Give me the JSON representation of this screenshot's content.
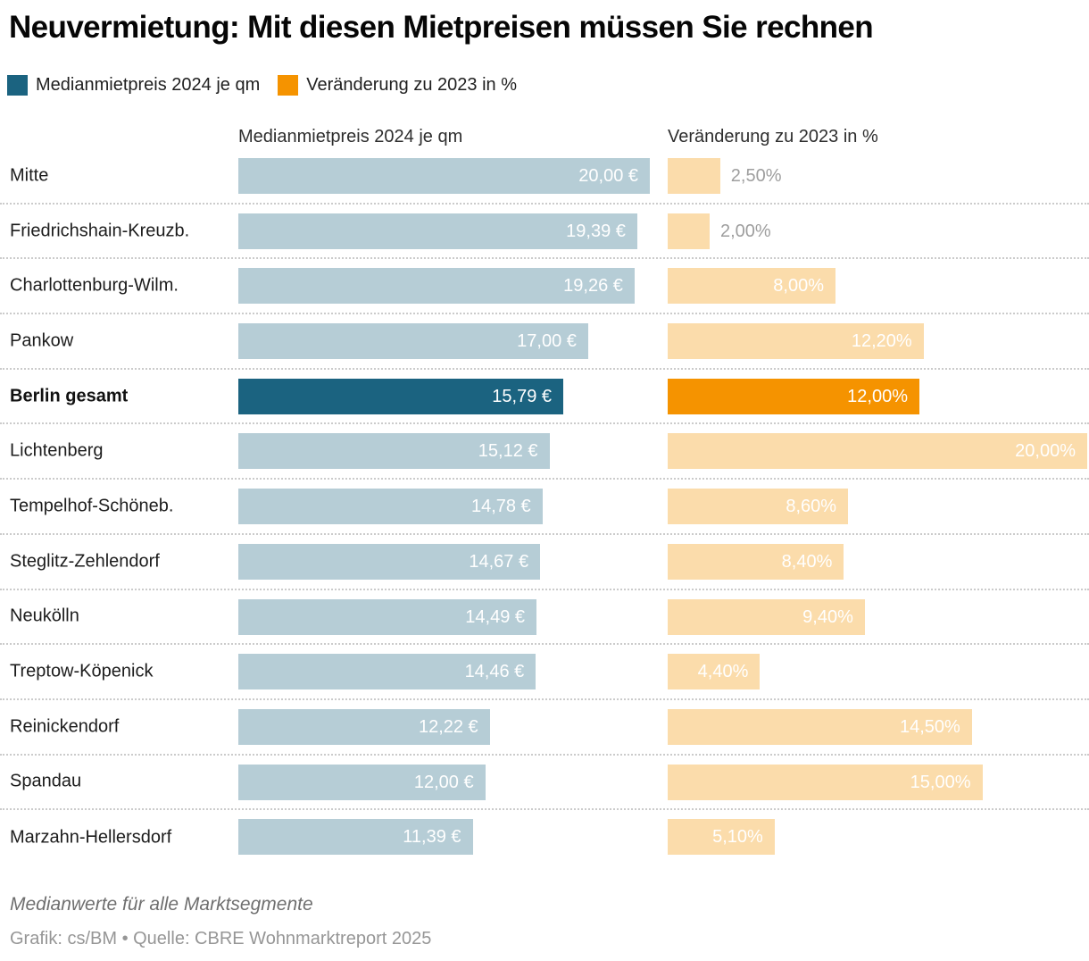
{
  "title": "Neuvermietung: Mit diesen Mietpreisen müssen Sie rechnen",
  "legend": {
    "items": [
      {
        "label": "Medianmietpreis 2024 je qm",
        "color": "#1b6380"
      },
      {
        "label": "Veränderung zu 2023 in %",
        "color": "#f59300"
      }
    ]
  },
  "columns": {
    "left": "Medianmietpreis 2024 je qm",
    "right": "Veränderung zu 2023 in %"
  },
  "footer": {
    "footnote": "Medianwerte für alle Marktsegmente",
    "source": "Grafik: cs/BM • Quelle: CBRE Wohnmarktreport 2025"
  },
  "chart_data": {
    "type": "bar",
    "orientation": "horizontal",
    "title": "Neuvermietung: Mit diesen Mietpreisen müssen Sie rechnen",
    "categories": [
      "Mitte",
      "Friedrichshain-Kreuzb.",
      "Charlottenburg-Wilm.",
      "Pankow",
      "Berlin gesamt",
      "Lichtenberg",
      "Tempelhof-Schöneb.",
      "Steglitz-Zehlendorf",
      "Neukölln",
      "Treptow-Köpenick",
      "Reinickendorf",
      "Spandau",
      "Marzahn-Hellersdorf"
    ],
    "highlight_category": "Berlin gesamt",
    "grid": "dotted-row-separators",
    "legend_position": "top-left",
    "series": [
      {
        "name": "Medianmietpreis 2024 je qm",
        "unit": "€ je qm",
        "axis_max": 20,
        "values": [
          20.0,
          19.39,
          19.26,
          17.0,
          15.79,
          15.12,
          14.78,
          14.67,
          14.49,
          14.46,
          12.22,
          12.0,
          11.39
        ],
        "labels": [
          "20,00 €",
          "19,39 €",
          "19,26 €",
          "17,00 €",
          "15,79 €",
          "15,12 €",
          "14,78 €",
          "14,67 €",
          "14,49 €",
          "14,46 €",
          "12,22 €",
          "12,00 €",
          "11,39 €"
        ]
      },
      {
        "name": "Veränderung zu 2023 in %",
        "unit": "%",
        "axis_max": 20,
        "values": [
          2.5,
          2.0,
          8.0,
          12.2,
          12.0,
          20.0,
          8.6,
          8.4,
          9.4,
          4.4,
          14.5,
          15.0,
          5.1
        ],
        "labels": [
          "2,50%",
          "2,00%",
          "8,00%",
          "12,20%",
          "12,00%",
          "20,00%",
          "8,60%",
          "8,40%",
          "9,40%",
          "4,40%",
          "14,50%",
          "15,00%",
          "5,10%"
        ]
      }
    ],
    "colors": {
      "price_bar": "#b6cdd6",
      "price_bar_highlight": "#1b6380",
      "change_bar": "#fbdcab",
      "change_bar_highlight": "#f59300",
      "value_inside": "#ffffff",
      "value_outside": "#9e9e9e"
    }
  }
}
